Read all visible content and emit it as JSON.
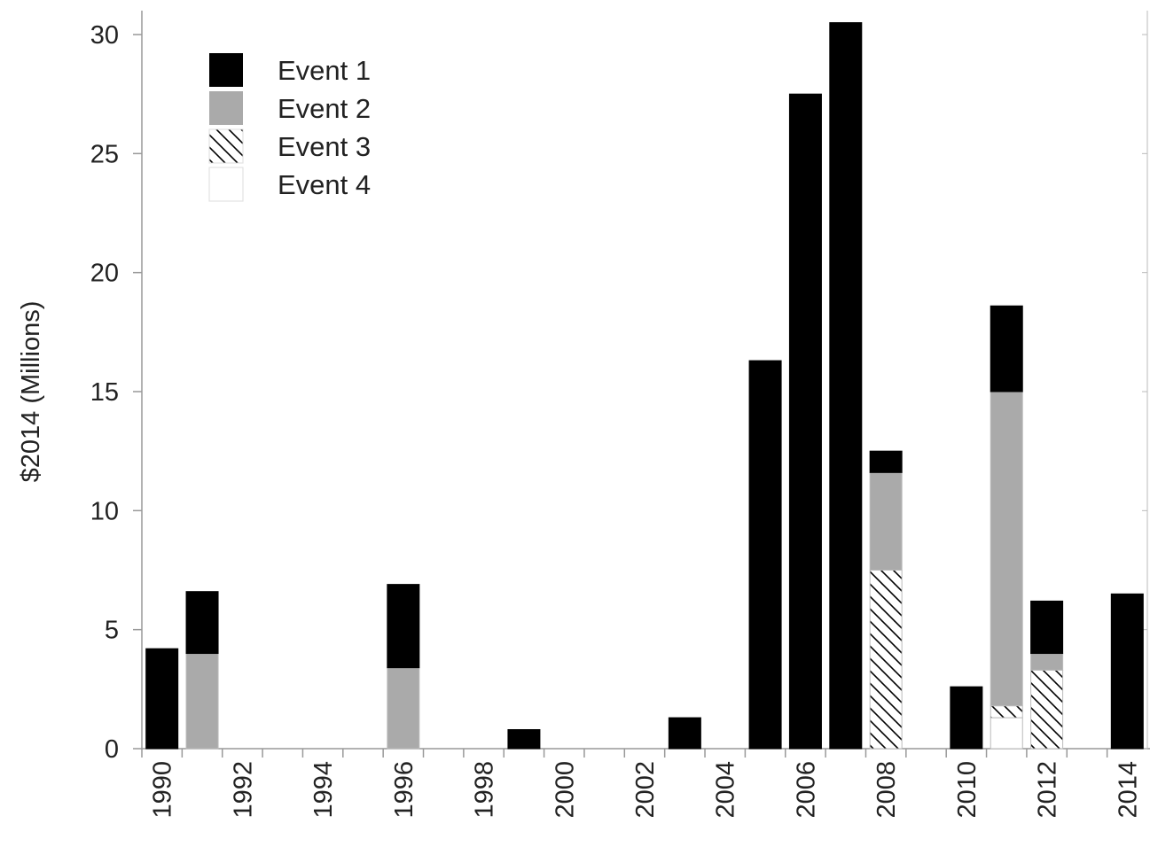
{
  "chart_data": {
    "type": "bar",
    "stacked": true,
    "ylabel": "$2014 (Millions)",
    "xlabel": "",
    "ylim": [
      0,
      31
    ],
    "yticks": [
      0,
      5,
      10,
      15,
      20,
      25,
      30
    ],
    "xticks": [
      "1990",
      "1992",
      "1994",
      "1996",
      "1998",
      "2000",
      "2002",
      "2004",
      "2006",
      "2008",
      "2010",
      "2012",
      "2014"
    ],
    "xlim": [
      1989.5,
      2014.5
    ],
    "grid": false,
    "legend_position": "top-left",
    "categories": [
      1990,
      1991,
      1996,
      1999,
      2003,
      2005,
      2006,
      2007,
      2008,
      2010,
      2011,
      2012,
      2014
    ],
    "series": [
      {
        "name": "Event 4",
        "style": "white",
        "color": "#ffffff",
        "values": [
          0,
          0,
          0,
          0,
          0,
          0,
          0,
          0,
          0,
          0,
          1.3,
          0,
          0
        ]
      },
      {
        "name": "Event 3",
        "style": "hatch",
        "color": "#ffffff",
        "values": [
          0,
          0,
          0,
          0,
          0,
          0,
          0,
          0,
          7.5,
          0,
          0.5,
          3.3,
          0
        ]
      },
      {
        "name": "Event 2",
        "style": "solid",
        "color": "#aaaaaa",
        "values": [
          0,
          4.0,
          3.4,
          0,
          0,
          0,
          0,
          0,
          4.1,
          0,
          13.2,
          0.7,
          0
        ]
      },
      {
        "name": "Event 1",
        "style": "solid",
        "color": "#000000",
        "values": [
          4.2,
          2.6,
          3.5,
          0.8,
          1.3,
          16.3,
          27.5,
          30.5,
          0.9,
          2.6,
          3.6,
          2.2,
          6.5
        ]
      }
    ],
    "legend_order": [
      "Event 1",
      "Event 2",
      "Event 3",
      "Event 4"
    ]
  }
}
